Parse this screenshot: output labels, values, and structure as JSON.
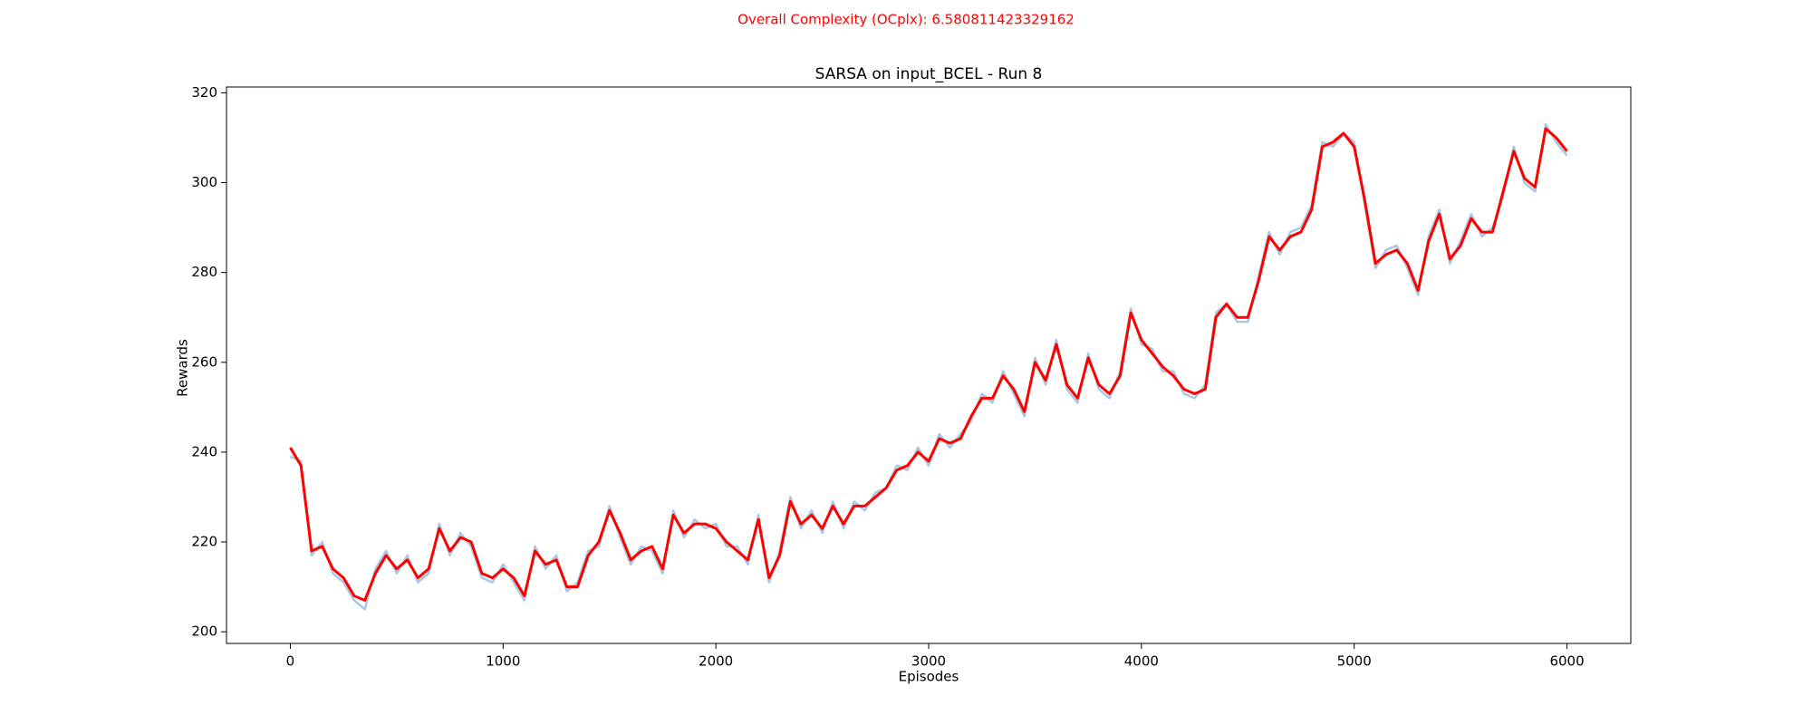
{
  "chart_data": {
    "type": "line",
    "suptitle": "Overall Complexity (OCplx): 6.580811423329162",
    "title": "SARSA on input_BCEL - Run 8",
    "x_label": "Episodes",
    "y_label": "Rewards",
    "xlim": [
      -300,
      6300
    ],
    "ylim": [
      197.4,
      321.3
    ],
    "xticks": [
      0,
      1000,
      2000,
      3000,
      4000,
      5000,
      6000
    ],
    "yticks": [
      200,
      220,
      240,
      260,
      280,
      300,
      320
    ],
    "x": [
      0,
      50,
      100,
      150,
      200,
      250,
      300,
      350,
      400,
      450,
      500,
      550,
      600,
      650,
      700,
      750,
      800,
      850,
      900,
      950,
      1000,
      1050,
      1100,
      1150,
      1200,
      1250,
      1300,
      1350,
      1400,
      1450,
      1500,
      1550,
      1600,
      1650,
      1700,
      1750,
      1800,
      1850,
      1900,
      1950,
      2000,
      2050,
      2100,
      2150,
      2200,
      2250,
      2300,
      2350,
      2400,
      2450,
      2500,
      2550,
      2600,
      2650,
      2700,
      2750,
      2800,
      2850,
      2900,
      2950,
      3000,
      3050,
      3100,
      3150,
      3200,
      3250,
      3300,
      3350,
      3400,
      3450,
      3500,
      3550,
      3600,
      3650,
      3700,
      3750,
      3800,
      3850,
      3900,
      3950,
      4000,
      4050,
      4100,
      4150,
      4200,
      4250,
      4300,
      4350,
      4400,
      4450,
      4500,
      4550,
      4600,
      4650,
      4700,
      4750,
      4800,
      4850,
      4900,
      4950,
      5000,
      5050,
      5100,
      5150,
      5200,
      5250,
      5300,
      5350,
      5400,
      5450,
      5500,
      5550,
      5600,
      5650,
      5700,
      5750,
      5800,
      5850,
      5900,
      5950,
      6000
    ],
    "series": [
      {
        "color": "#a9c6e3",
        "width": 2.5,
        "values": [
          239,
          238,
          217,
          220,
          213,
          211,
          207,
          205,
          214,
          218,
          213,
          217,
          211,
          213,
          224,
          217,
          222,
          219,
          212,
          211,
          215,
          211,
          207,
          219,
          214,
          217,
          209,
          211,
          218,
          219,
          228,
          221,
          215,
          219,
          218,
          213,
          227,
          221,
          225,
          223,
          224,
          219,
          219,
          215,
          226,
          211,
          218,
          230,
          223,
          227,
          222,
          229,
          223,
          229,
          227,
          231,
          232,
          237,
          236,
          241,
          237,
          244,
          241,
          244,
          247,
          253,
          251,
          258,
          253,
          248,
          261,
          255,
          265,
          254,
          251,
          262,
          254,
          252,
          258,
          272,
          264,
          263,
          258,
          258,
          253,
          252,
          255,
          271,
          273,
          269,
          269,
          279,
          289,
          284,
          289,
          290,
          295,
          309,
          308,
          311,
          309,
          295,
          281,
          285,
          286,
          281,
          275,
          288,
          294,
          282,
          287,
          293,
          288,
          290,
          297,
          308,
          300,
          298,
          313,
          309,
          306
        ]
      },
      {
        "color": "#ff0000",
        "width": 3,
        "values": [
          241,
          237,
          218,
          219,
          214,
          212,
          208,
          207,
          213,
          217,
          214,
          216,
          212,
          214,
          223,
          218,
          221,
          220,
          213,
          212,
          214,
          212,
          208,
          218,
          215,
          216,
          210,
          210,
          217,
          220,
          227,
          222,
          216,
          218,
          219,
          214,
          226,
          222,
          224,
          224,
          223,
          220,
          218,
          216,
          225,
          212,
          217,
          229,
          224,
          226,
          223,
          228,
          224,
          228,
          228,
          230,
          232,
          236,
          237,
          240,
          238,
          243,
          242,
          243,
          248,
          252,
          252,
          257,
          254,
          249,
          260,
          256,
          264,
          255,
          252,
          261,
          255,
          253,
          257,
          271,
          265,
          262,
          259,
          257,
          254,
          253,
          254,
          270,
          273,
          270,
          270,
          278,
          288,
          285,
          288,
          289,
          294,
          308,
          309,
          311,
          308,
          296,
          282,
          284,
          285,
          282,
          276,
          287,
          293,
          283,
          286,
          292,
          289,
          289,
          298,
          307,
          301,
          299,
          312,
          310,
          307
        ]
      }
    ]
  }
}
